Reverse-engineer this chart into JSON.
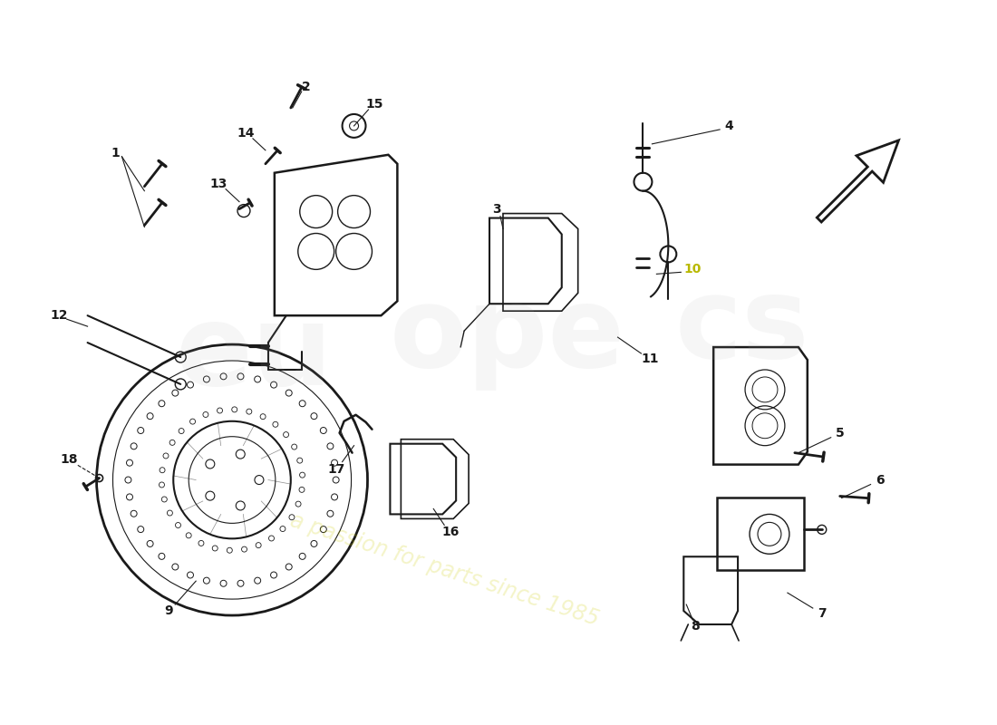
{
  "bg_color": "#ffffff",
  "line_color": "#1a1a1a",
  "label_color": "#1a1a1a",
  "label10_color": "#b8b800",
  "parts_labels": [
    "1",
    "2",
    "3",
    "4",
    "5",
    "6",
    "7",
    "8",
    "9",
    "10",
    "11",
    "12",
    "13",
    "14",
    "15",
    "16",
    "17",
    "18"
  ]
}
